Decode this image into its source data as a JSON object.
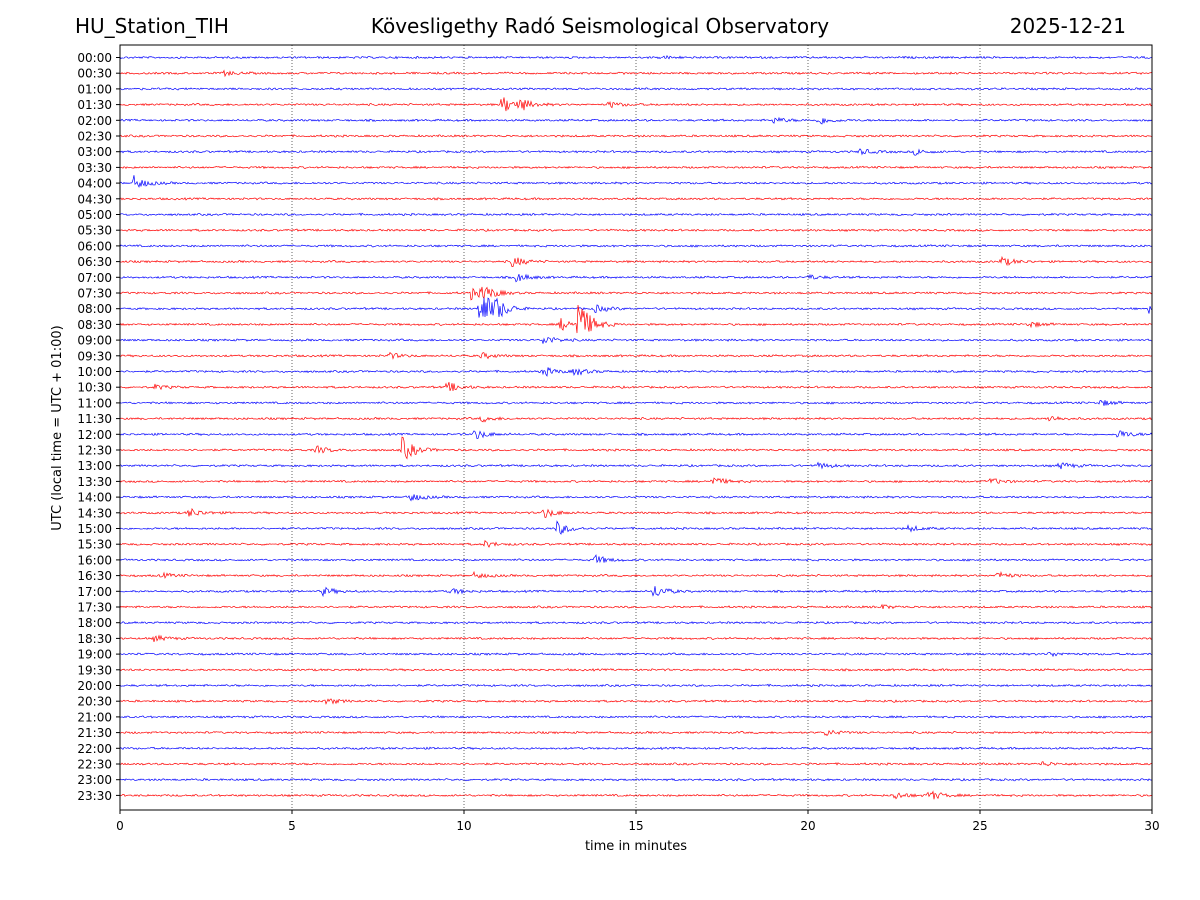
{
  "header": {
    "station": "HU_Station_TIH",
    "observatory": "Kövesligethy Radó Seismological Observatory",
    "date": "2025-12-21"
  },
  "chart_data": {
    "type": "line",
    "subtype": "helicorder",
    "title": "Kövesligethy Radó Seismological Observatory",
    "xlabel": "time in minutes",
    "ylabel": "UTC (local time = UTC + 01:00)",
    "xlim": [
      0,
      30
    ],
    "x_ticks": [
      0,
      5,
      10,
      15,
      20,
      25,
      30
    ],
    "grid": "vertical dotted at every x tick",
    "row_labels": [
      "00:00",
      "00:30",
      "01:00",
      "01:30",
      "02:00",
      "02:30",
      "03:00",
      "03:30",
      "04:00",
      "04:30",
      "05:00",
      "05:30",
      "06:00",
      "06:30",
      "07:00",
      "07:30",
      "08:00",
      "08:30",
      "09:00",
      "09:30",
      "10:00",
      "10:30",
      "11:00",
      "11:30",
      "12:00",
      "12:30",
      "13:00",
      "13:30",
      "14:00",
      "14:30",
      "15:00",
      "15:30",
      "16:00",
      "16:30",
      "17:00",
      "17:30",
      "18:00",
      "18:30",
      "19:00",
      "19:30",
      "20:00",
      "20:30",
      "21:00",
      "21:30",
      "22:00",
      "22:30",
      "23:00",
      "23:30"
    ],
    "colors": [
      "#0000ff",
      "#ff0000"
    ],
    "events": [
      {
        "row": 0,
        "t": 15.7,
        "amp": 0.1
      },
      {
        "row": 1,
        "t": 3.0,
        "amp": 0.15
      },
      {
        "row": 3,
        "t": 11.1,
        "amp": 0.6
      },
      {
        "row": 3,
        "t": 11.6,
        "amp": 0.35
      },
      {
        "row": 3,
        "t": 14.2,
        "amp": 0.2
      },
      {
        "row": 4,
        "t": 19.0,
        "amp": 0.2
      },
      {
        "row": 4,
        "t": 20.3,
        "amp": 0.3
      },
      {
        "row": 6,
        "t": 21.5,
        "amp": 0.2
      },
      {
        "row": 6,
        "t": 23.1,
        "amp": 0.2
      },
      {
        "row": 8,
        "t": 0.4,
        "amp": 0.45
      },
      {
        "row": 13,
        "t": 11.4,
        "amp": 0.35
      },
      {
        "row": 13,
        "t": 25.6,
        "amp": 0.3
      },
      {
        "row": 14,
        "t": 11.5,
        "amp": 0.3
      },
      {
        "row": 14,
        "t": 20.0,
        "amp": 0.15
      },
      {
        "row": 15,
        "t": 10.2,
        "amp": 0.4
      },
      {
        "row": 15,
        "t": 10.55,
        "amp": 0.45
      },
      {
        "row": 16,
        "t": 10.45,
        "amp": 1.5
      },
      {
        "row": 16,
        "t": 10.9,
        "amp": 0.5
      },
      {
        "row": 16,
        "t": 13.8,
        "amp": 0.25
      },
      {
        "row": 16,
        "t": 29.9,
        "amp": 0.3
      },
      {
        "row": 17,
        "t": 13.3,
        "amp": 1.6
      },
      {
        "row": 17,
        "t": 12.8,
        "amp": 0.4
      },
      {
        "row": 17,
        "t": 26.4,
        "amp": 0.2
      },
      {
        "row": 18,
        "t": 12.3,
        "amp": 0.3
      },
      {
        "row": 19,
        "t": 7.8,
        "amp": 0.2
      },
      {
        "row": 19,
        "t": 10.5,
        "amp": 0.2
      },
      {
        "row": 20,
        "t": 12.3,
        "amp": 0.3
      },
      {
        "row": 20,
        "t": 13.2,
        "amp": 0.25
      },
      {
        "row": 21,
        "t": 9.5,
        "amp": 0.35
      },
      {
        "row": 21,
        "t": 1.0,
        "amp": 0.15
      },
      {
        "row": 22,
        "t": 28.5,
        "amp": 0.2
      },
      {
        "row": 23,
        "t": 10.5,
        "amp": 0.2
      },
      {
        "row": 23,
        "t": 27.0,
        "amp": 0.2
      },
      {
        "row": 24,
        "t": 10.3,
        "amp": 0.35
      },
      {
        "row": 24,
        "t": 29.0,
        "amp": 0.3
      },
      {
        "row": 25,
        "t": 5.7,
        "amp": 0.25
      },
      {
        "row": 25,
        "t": 8.2,
        "amp": 0.8
      },
      {
        "row": 26,
        "t": 20.3,
        "amp": 0.2
      },
      {
        "row": 26,
        "t": 27.3,
        "amp": 0.25
      },
      {
        "row": 27,
        "t": 17.2,
        "amp": 0.3
      },
      {
        "row": 27,
        "t": 25.3,
        "amp": 0.2
      },
      {
        "row": 28,
        "t": 8.4,
        "amp": 0.3
      },
      {
        "row": 29,
        "t": 2.0,
        "amp": 0.3
      },
      {
        "row": 29,
        "t": 12.3,
        "amp": 0.35
      },
      {
        "row": 30,
        "t": 12.7,
        "amp": 0.45
      },
      {
        "row": 30,
        "t": 22.9,
        "amp": 0.2
      },
      {
        "row": 31,
        "t": 10.6,
        "amp": 0.2
      },
      {
        "row": 32,
        "t": 13.8,
        "amp": 0.3
      },
      {
        "row": 33,
        "t": 1.2,
        "amp": 0.15
      },
      {
        "row": 33,
        "t": 10.3,
        "amp": 0.2
      },
      {
        "row": 33,
        "t": 25.5,
        "amp": 0.25
      },
      {
        "row": 34,
        "t": 5.9,
        "amp": 0.25
      },
      {
        "row": 34,
        "t": 9.6,
        "amp": 0.2
      },
      {
        "row": 34,
        "t": 15.5,
        "amp": 0.45
      },
      {
        "row": 35,
        "t": 22.1,
        "amp": 0.15
      },
      {
        "row": 37,
        "t": 1.0,
        "amp": 0.2
      },
      {
        "row": 38,
        "t": 27.0,
        "amp": 0.15
      },
      {
        "row": 41,
        "t": 6.0,
        "amp": 0.2
      },
      {
        "row": 43,
        "t": 20.5,
        "amp": 0.2
      },
      {
        "row": 45,
        "t": 26.8,
        "amp": 0.15
      },
      {
        "row": 47,
        "t": 22.5,
        "amp": 0.25
      },
      {
        "row": 47,
        "t": 23.5,
        "amp": 0.35
      }
    ]
  }
}
